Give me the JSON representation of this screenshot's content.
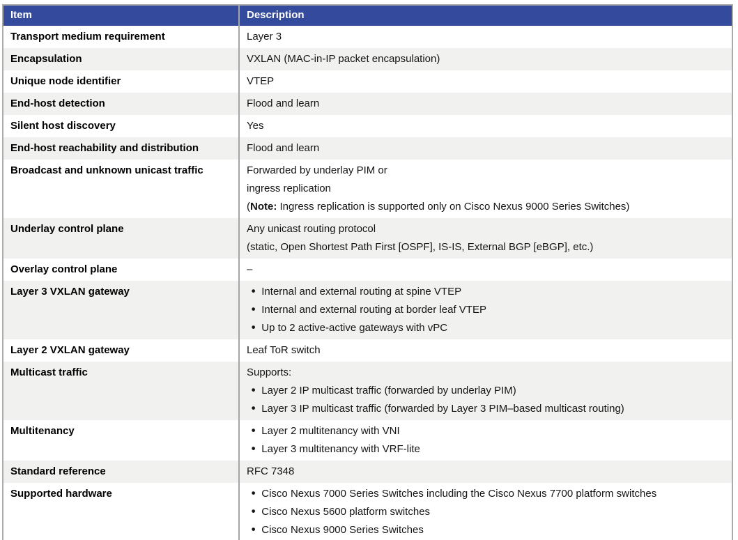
{
  "colors": {
    "header_bg": "#344a9c",
    "header_text": "#ffffff",
    "shaded_row_bg": "#f1f1ef",
    "outer_border": "#ababab",
    "column_divider": "#a4a4a9"
  },
  "table": {
    "bullet_glyph": "•",
    "columns": [
      {
        "label": "Item"
      },
      {
        "label": "Description"
      }
    ],
    "rows": [
      {
        "item": "Transport medium requirement",
        "description": [
          {
            "bullet": false,
            "segments": [
              {
                "text": "Layer 3",
                "bold": false
              }
            ]
          }
        ]
      },
      {
        "item": "Encapsulation",
        "description": [
          {
            "bullet": false,
            "segments": [
              {
                "text": "VXLAN (MAC-in-IP packet encapsulation)",
                "bold": false
              }
            ]
          }
        ]
      },
      {
        "item": "Unique node identifier",
        "description": [
          {
            "bullet": false,
            "segments": [
              {
                "text": "VTEP",
                "bold": false
              }
            ]
          }
        ]
      },
      {
        "item": "End-host detection",
        "description": [
          {
            "bullet": false,
            "segments": [
              {
                "text": "Flood and learn",
                "bold": false
              }
            ]
          }
        ]
      },
      {
        "item": "Silent host discovery",
        "description": [
          {
            "bullet": false,
            "segments": [
              {
                "text": "Yes",
                "bold": false
              }
            ]
          }
        ]
      },
      {
        "item": "End-host reachability and distribution",
        "description": [
          {
            "bullet": false,
            "segments": [
              {
                "text": "Flood and learn",
                "bold": false
              }
            ]
          }
        ]
      },
      {
        "item": "Broadcast and unknown unicast traffic",
        "description": [
          {
            "bullet": false,
            "segments": [
              {
                "text": "Forwarded by underlay PIM or",
                "bold": false
              }
            ]
          },
          {
            "bullet": false,
            "segments": [
              {
                "text": "ingress replication",
                "bold": false
              }
            ]
          },
          {
            "bullet": false,
            "segments": [
              {
                "text": "(",
                "bold": false
              },
              {
                "text": "Note:",
                "bold": true
              },
              {
                "text": " Ingress replication is supported only on Cisco Nexus 9000 Series Switches)",
                "bold": false
              }
            ]
          }
        ]
      },
      {
        "item": "Underlay control plane",
        "description": [
          {
            "bullet": false,
            "segments": [
              {
                "text": "Any unicast routing protocol",
                "bold": false
              }
            ]
          },
          {
            "bullet": false,
            "segments": [
              {
                "text": "(static, Open Shortest Path First [OSPF], IS-IS, External BGP [eBGP], etc.)",
                "bold": false
              }
            ]
          }
        ]
      },
      {
        "item": "Overlay control plane",
        "description": [
          {
            "bullet": false,
            "segments": [
              {
                "text": "–",
                "bold": false
              }
            ]
          }
        ]
      },
      {
        "item": "Layer 3 VXLAN gateway",
        "description": [
          {
            "bullet": true,
            "segments": [
              {
                "text": "Internal and external routing at spine VTEP",
                "bold": false
              }
            ]
          },
          {
            "bullet": true,
            "segments": [
              {
                "text": "Internal and external routing at border leaf VTEP",
                "bold": false
              }
            ]
          },
          {
            "bullet": true,
            "segments": [
              {
                "text": "Up to 2 active-active gateways with vPC",
                "bold": false
              }
            ]
          }
        ]
      },
      {
        "item": "Layer 2 VXLAN gateway",
        "description": [
          {
            "bullet": false,
            "segments": [
              {
                "text": "Leaf ToR switch",
                "bold": false
              }
            ]
          }
        ]
      },
      {
        "item": "Multicast traffic",
        "description": [
          {
            "bullet": false,
            "segments": [
              {
                "text": "Supports:",
                "bold": false
              }
            ]
          },
          {
            "bullet": true,
            "segments": [
              {
                "text": "Layer 2 IP multicast traffic (forwarded by underlay PIM)",
                "bold": false
              }
            ]
          },
          {
            "bullet": true,
            "segments": [
              {
                "text": "Layer 3 IP multicast traffic (forwarded by Layer 3 PIM–based multicast routing)",
                "bold": false
              }
            ]
          }
        ]
      },
      {
        "item": "Multitenancy",
        "description": [
          {
            "bullet": true,
            "segments": [
              {
                "text": "Layer 2 multitenancy with VNI",
                "bold": false
              }
            ]
          },
          {
            "bullet": true,
            "segments": [
              {
                "text": "Layer 3 multitenancy with VRF-lite",
                "bold": false
              }
            ]
          }
        ]
      },
      {
        "item": "Standard reference",
        "description": [
          {
            "bullet": false,
            "segments": [
              {
                "text": "RFC 7348",
                "bold": false
              }
            ]
          }
        ]
      },
      {
        "item": "Supported hardware",
        "description": [
          {
            "bullet": true,
            "segments": [
              {
                "text": "Cisco Nexus 7000 Series Switches including the Cisco Nexus 7700 platform switches",
                "bold": false
              }
            ]
          },
          {
            "bullet": true,
            "segments": [
              {
                "text": "Cisco Nexus 5600 platform switches",
                "bold": false
              }
            ]
          },
          {
            "bullet": true,
            "segments": [
              {
                "text": "Cisco Nexus 9000 Series Switches",
                "bold": false
              }
            ]
          }
        ]
      }
    ]
  }
}
